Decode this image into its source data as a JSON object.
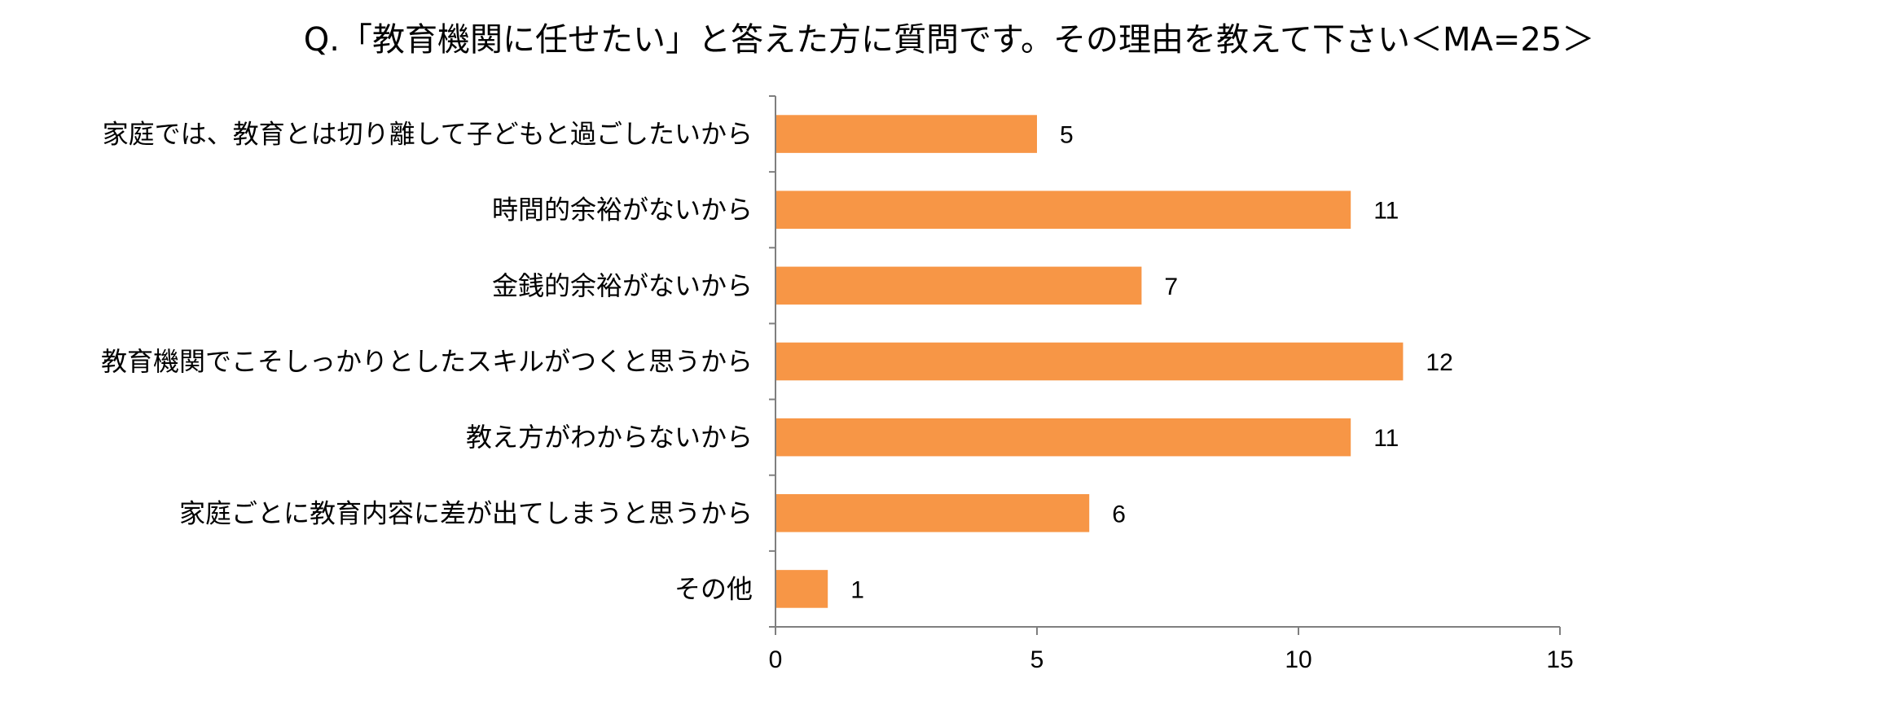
{
  "chart_data": {
    "type": "bar",
    "orientation": "horizontal",
    "title": "Q.「教育機関に任せたい」と答えた方に質問です。その理由を教えて下さい＜MA=25＞",
    "xlabel": "",
    "ylabel": "",
    "categories": [
      "家庭では、教育とは切り離して子どもと過ごしたいから",
      "時間的余裕がないから",
      "金銭的余裕がないから",
      "教育機関でこそしっかりとしたスキルがつくと思うから",
      "教え方がわからないから",
      "家庭ごとに教育内容に差が出てしまうと思うから",
      "その他"
    ],
    "values": [
      5,
      11,
      7,
      12,
      11,
      6,
      1
    ],
    "xlim": [
      0,
      15
    ],
    "xticks": [
      "0",
      "5",
      "10",
      "15"
    ],
    "grid": false,
    "legend": "none",
    "bar_color": "#F79646"
  }
}
